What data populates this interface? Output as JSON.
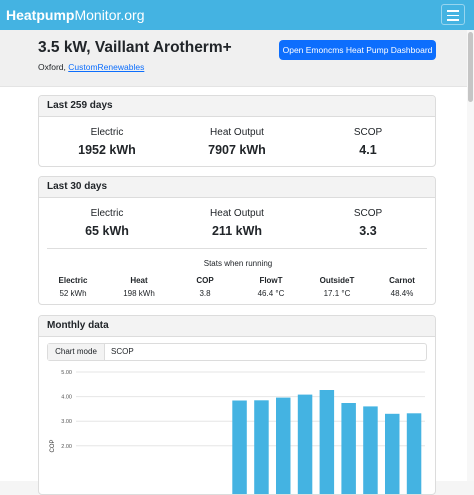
{
  "nav": {
    "brand_bold": "Heatpump",
    "brand_light": "Monitor.org"
  },
  "system": {
    "title": "3.5 kW, Vaillant Arotherm+",
    "location": "Oxford,",
    "installer": "CustomRenewables",
    "dashboard_button": "Open Emoncms Heat Pump Dashboard"
  },
  "card_all": {
    "title": "Last 259 days",
    "stats": [
      {
        "label": "Electric",
        "value": "1952 kWh"
      },
      {
        "label": "Heat Output",
        "value": "7907 kWh"
      },
      {
        "label": "SCOP",
        "value": "4.1"
      }
    ]
  },
  "card_30": {
    "title": "Last 30 days",
    "stats": [
      {
        "label": "Electric",
        "value": "65 kWh"
      },
      {
        "label": "Heat Output",
        "value": "211 kWh"
      },
      {
        "label": "SCOP",
        "value": "3.3"
      }
    ],
    "running_title": "Stats when running",
    "running": [
      {
        "label": "Electric",
        "value": "52 kWh"
      },
      {
        "label": "Heat",
        "value": "198 kWh"
      },
      {
        "label": "COP",
        "value": "3.8"
      },
      {
        "label": "FlowT",
        "value": "46.4 °C"
      },
      {
        "label": "OutsideT",
        "value": "17.1 °C"
      },
      {
        "label": "Carnot",
        "value": "48.4%"
      }
    ]
  },
  "monthly": {
    "title": "Monthly data",
    "mode_label": "Chart mode",
    "mode_value": "SCOP"
  },
  "chart_data": {
    "type": "bar",
    "ylabel": "COP",
    "ylim": [
      1.5,
      5.4
    ],
    "yticks": [
      "5.00",
      "4.00",
      "3.00",
      "2.00"
    ],
    "values": [
      null,
      null,
      null,
      null,
      null,
      null,
      null,
      3.84,
      3.85,
      3.96,
      4.08,
      4.27,
      3.74,
      3.6,
      3.3,
      3.32
    ],
    "bar_color": "#44b3e2"
  },
  "colors": {
    "navbar": "#44b3e2",
    "primary": "#0d6efd",
    "bar": "#44b3e2"
  }
}
